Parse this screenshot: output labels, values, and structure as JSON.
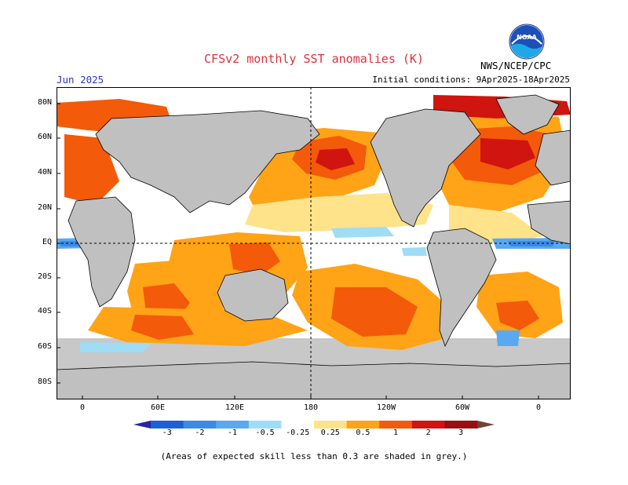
{
  "header": {
    "title": "CFSv2 monthly SST anomalies (K)",
    "agency": "NWS/NCEP/CPC",
    "logo_text": "NOAA",
    "forecast_month": "Jun 2025",
    "initial_conditions": "Initial conditions: 9Apr2025-18Apr2025"
  },
  "map": {
    "lat_labels": [
      "80N",
      "60N",
      "40N",
      "20N",
      "EQ",
      "20S",
      "40S",
      "60S",
      "80S"
    ],
    "lon_labels": [
      "0",
      "60E",
      "120E",
      "180",
      "120W",
      "60W",
      "0"
    ],
    "land_color": "#c0c0c0"
  },
  "colorbar": {
    "labels": [
      "-3",
      "-2",
      "-1",
      "-0.5",
      "-0.25",
      "0.25",
      "0.5",
      "1",
      "2",
      "3"
    ],
    "colors": [
      "#27279e",
      "#1f5fd6",
      "#3c8ae6",
      "#5aa8f0",
      "#9fdcf5",
      "#ffffff",
      "#ffe38a",
      "#ffa317",
      "#f35a0a",
      "#d0140f",
      "#9b0d10",
      "#6e4435"
    ]
  },
  "footnote": "(Areas of expected skill less than 0.3 are shaded in grey.)"
}
